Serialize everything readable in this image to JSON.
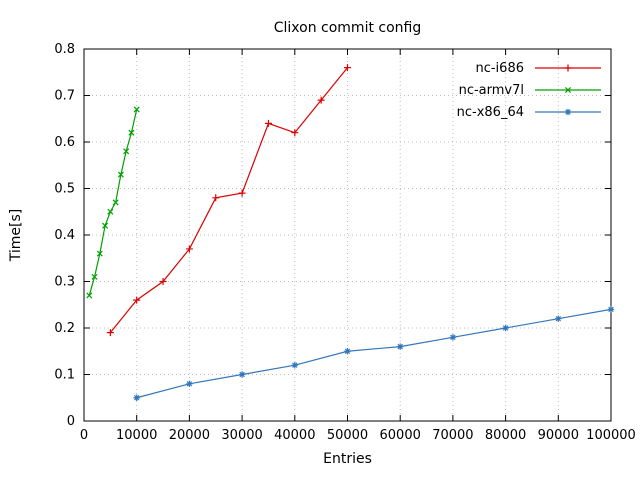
{
  "chart_data": {
    "type": "line",
    "title": "Clixon commit config",
    "xlabel": "Entries",
    "ylabel": "Time[s]",
    "xlim": [
      0,
      100000
    ],
    "ylim": [
      0,
      0.8
    ],
    "xticks": [
      0,
      10000,
      20000,
      30000,
      40000,
      50000,
      60000,
      70000,
      80000,
      90000,
      100000
    ],
    "yticks": [
      0,
      0.1,
      0.2,
      0.3,
      0.4,
      0.5,
      0.6,
      0.7,
      0.8
    ],
    "grid": "dotted",
    "legend_position": "top-right-inside",
    "series": [
      {
        "name": "nc-i686",
        "color": "#dd0000",
        "marker": "plus",
        "x": [
          5000,
          10000,
          15000,
          20000,
          25000,
          30000,
          35000,
          40000,
          45000,
          50000
        ],
        "y": [
          0.19,
          0.26,
          0.3,
          0.37,
          0.48,
          0.49,
          0.64,
          0.62,
          0.69,
          0.76
        ]
      },
      {
        "name": "nc-armv7l",
        "color": "#00a000",
        "marker": "cross",
        "x": [
          1000,
          2000,
          3000,
          4000,
          5000,
          6000,
          7000,
          8000,
          9000,
          10000
        ],
        "y": [
          0.27,
          0.31,
          0.36,
          0.42,
          0.45,
          0.47,
          0.53,
          0.58,
          0.62,
          0.67
        ]
      },
      {
        "name": "nc-x86_64",
        "color": "#3377bb",
        "marker": "asterisk",
        "x": [
          10000,
          20000,
          30000,
          40000,
          50000,
          60000,
          70000,
          80000,
          90000,
          100000
        ],
        "y": [
          0.05,
          0.08,
          0.1,
          0.12,
          0.15,
          0.16,
          0.18,
          0.2,
          0.22,
          0.24
        ]
      }
    ]
  }
}
